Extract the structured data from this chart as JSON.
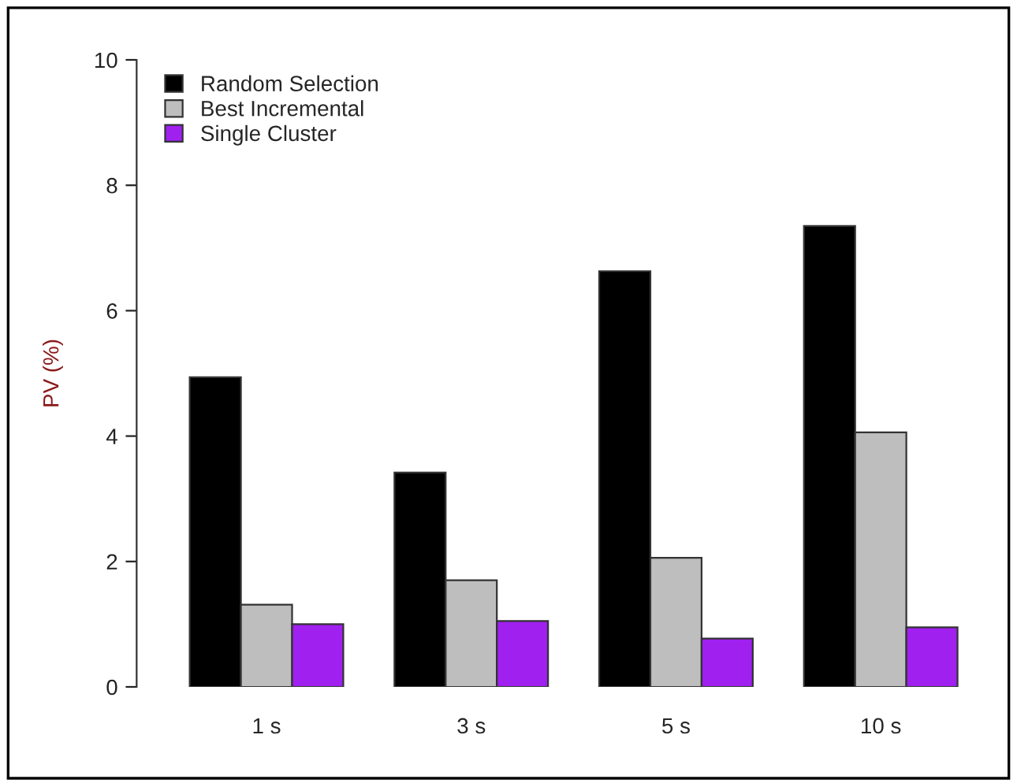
{
  "chart_data": {
    "type": "bar",
    "ylabel": "PV (%)",
    "categories": [
      "1 s",
      "3 s",
      "5 s",
      "10 s"
    ],
    "series": [
      {
        "name": "Random Selection",
        "color": "#000000",
        "values": [
          4.94,
          3.42,
          6.63,
          7.35
        ]
      },
      {
        "name": "Best Incremental",
        "color": "#bebebe",
        "values": [
          1.31,
          1.7,
          2.06,
          4.06
        ]
      },
      {
        "name": "Single Cluster",
        "color": "#a020f0",
        "values": [
          1.0,
          1.05,
          0.77,
          0.95
        ]
      }
    ],
    "ylim": [
      0,
      10
    ],
    "yticks": [
      0,
      2,
      4,
      6,
      8,
      10
    ],
    "grid": false,
    "legend": "top left"
  }
}
